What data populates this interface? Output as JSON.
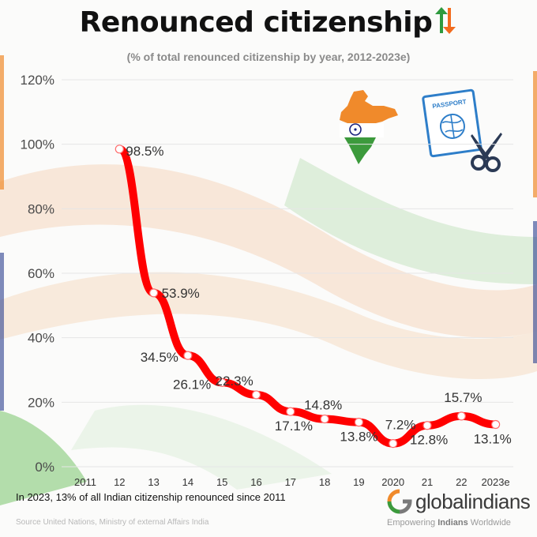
{
  "header": {
    "title": "Renounced citizenship",
    "subtitle": "(% of total renounced citizenship by year, 2012-2023e)"
  },
  "chart_data": {
    "type": "line",
    "title": "Renounced citizenship",
    "subtitle": "(% of total renounced citizenship by year, 2012-2023e)",
    "categories": [
      "2011",
      "12",
      "13",
      "14",
      "15",
      "16",
      "17",
      "18",
      "19",
      "2020",
      "21",
      "22",
      "2023e"
    ],
    "series": [
      {
        "values": [
          null,
          98.5,
          53.9,
          34.5,
          26.1,
          22.3,
          17.1,
          14.8,
          13.8,
          7.2,
          12.8,
          15.7,
          13.1
        ],
        "labels": [
          "",
          "98.5%",
          "53.9%",
          "34.5%",
          "26.1%",
          "22.3%",
          "17.1%",
          "14.8%",
          "13.8%",
          "7.2%",
          "12.8%",
          "15.7%",
          "13.1%"
        ],
        "color": "#ff0000"
      }
    ],
    "y_ticks": [
      "0%",
      "20%",
      "40%",
      "60%",
      "80%",
      "100%",
      "120%"
    ],
    "ylim": [
      0,
      120
    ],
    "grid": true,
    "xlabel": "",
    "ylabel": ""
  },
  "footer": {
    "note": "In 2023, 13% of all Indian citizenship renounced  since 2011",
    "source": "Source United Nations, Ministry of external Affairs India",
    "brand": "globalindians",
    "tagline_pre": "Empowering ",
    "tagline_bold": "Indians",
    "tagline_post": " Worldwide"
  },
  "icons": [
    "up-down-arrows-icon",
    "india-map-icon",
    "passport-icon",
    "scissors-icon",
    "globalindians-logo-icon"
  ],
  "colors": {
    "line": "#ff0000",
    "saffron": "#f4a460",
    "green": "#3c9a3c",
    "navy": "#1a237e",
    "passport": "#2e7ec9"
  }
}
